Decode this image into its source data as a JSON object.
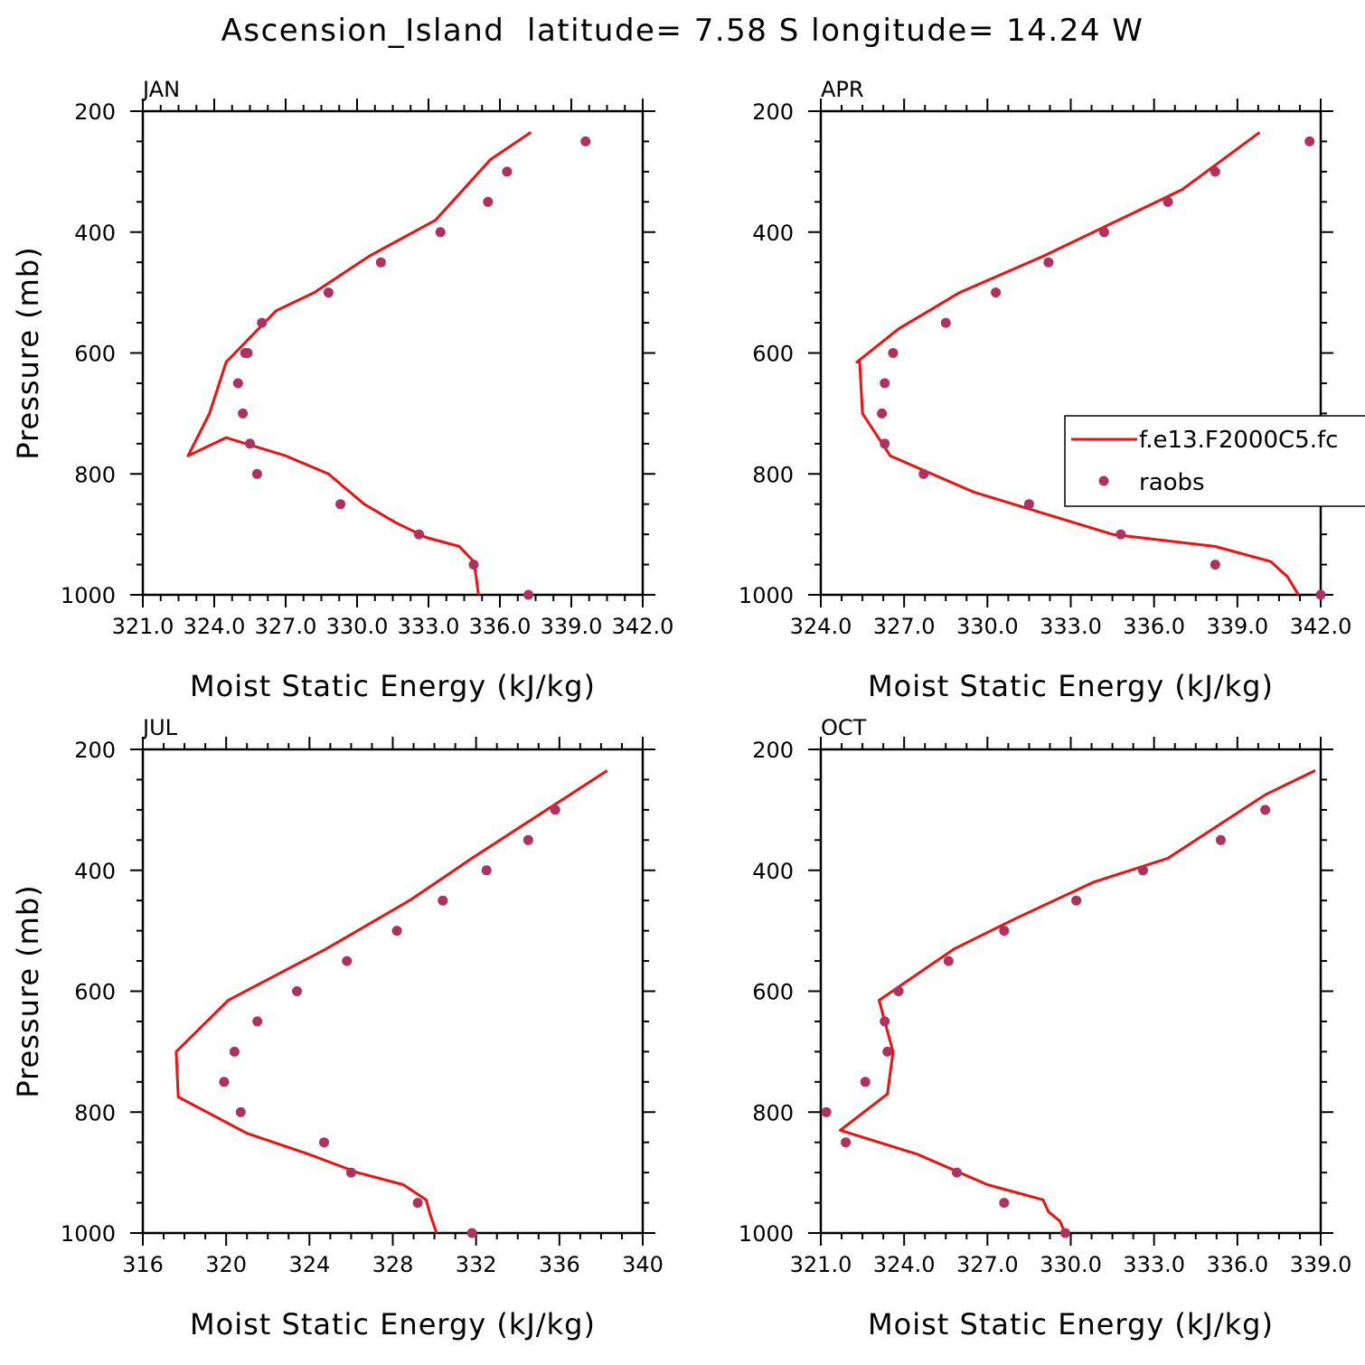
{
  "figure": {
    "title": "Ascension_Island  latitude= 7.58 S longitude= 14.24 W",
    "model_color": "#ee1111",
    "obs_color": "#b03060"
  },
  "legend": {
    "model_label": "f.e13.F2000C5.fc",
    "obs_label": "raobs"
  },
  "chart_data": [
    {
      "type": "line",
      "panel": "JAN",
      "xlabel": "Moist Static Energy (kJ/kg)",
      "ylabel": "Pressure (mb)",
      "xlim": [
        321.0,
        342.0
      ],
      "ylim": [
        1000,
        200
      ],
      "xticks": [
        321.0,
        324.0,
        327.0,
        330.0,
        333.0,
        336.0,
        339.0,
        342.0
      ],
      "xtick_labels": [
        "321.0",
        "324.0",
        "327.0",
        "330.0",
        "333.0",
        "336.0",
        "339.0",
        "342.0"
      ],
      "yticks": [
        200,
        400,
        600,
        800,
        1000
      ],
      "ytick_labels": [
        "200",
        "400",
        "600",
        "800",
        "1000"
      ],
      "series": [
        {
          "kind": "line",
          "x": [
            335.1,
            335.0,
            334.9,
            334.3,
            332.9,
            331.6,
            330.3,
            328.8,
            327.0,
            324.5,
            322.9,
            323.8,
            324.5,
            326.6,
            328.2,
            330.5,
            333.3,
            335.6,
            337.3
          ],
          "y": [
            1000,
            970,
            945,
            920,
            905,
            880,
            850,
            800,
            770,
            740,
            770,
            700,
            615,
            530,
            500,
            440,
            380,
            280,
            235
          ]
        },
        {
          "kind": "scatter",
          "x": [
            337.2,
            334.9,
            332.6,
            329.3,
            325.8,
            325.5,
            325.2,
            325.0,
            325.3,
            325.4,
            326.0,
            328.8,
            331.0,
            333.5,
            335.5,
            336.3,
            339.6
          ],
          "y": [
            1000,
            950,
            900,
            850,
            800,
            750,
            700,
            650,
            600,
            600,
            550,
            500,
            450,
            400,
            350,
            300,
            250
          ]
        }
      ]
    },
    {
      "type": "line",
      "panel": "APR",
      "xlabel": "Moist Static Energy (kJ/kg)",
      "ylabel": "",
      "xlim": [
        324.0,
        342.0
      ],
      "ylim": [
        1000,
        200
      ],
      "xticks": [
        324.0,
        327.0,
        330.0,
        333.0,
        336.0,
        339.0,
        342.0
      ],
      "xtick_labels": [
        "324.0",
        "327.0",
        "330.0",
        "333.0",
        "336.0",
        "339.0",
        "342.0"
      ],
      "yticks": [
        200,
        400,
        600,
        800,
        1000
      ],
      "ytick_labels": [
        "200",
        "400",
        "600",
        "800",
        "1000"
      ],
      "series": [
        {
          "kind": "line",
          "x": [
            341.2,
            340.8,
            340.2,
            338.2,
            334.5,
            329.5,
            327.5,
            326.5,
            325.5,
            325.4,
            325.3,
            326.8,
            329.0,
            332.0,
            337.0,
            339.8
          ],
          "y": [
            1000,
            970,
            945,
            920,
            900,
            830,
            790,
            770,
            700,
            615,
            615,
            560,
            500,
            440,
            330,
            235
          ]
        },
        {
          "kind": "scatter",
          "x": [
            342.0,
            338.2,
            334.8,
            331.5,
            327.7,
            326.3,
            326.2,
            326.3,
            326.6,
            328.5,
            330.3,
            332.2,
            334.2,
            336.5,
            338.2,
            341.6
          ],
          "y": [
            1000,
            950,
            900,
            850,
            800,
            750,
            700,
            650,
            600,
            550,
            500,
            450,
            400,
            350,
            300,
            250
          ]
        }
      ]
    },
    {
      "type": "line",
      "panel": "JUL",
      "xlabel": "Moist Static Energy (kJ/kg)",
      "ylabel": "Pressure (mb)",
      "xlim": [
        316,
        340
      ],
      "ylim": [
        1000,
        200
      ],
      "xticks": [
        316,
        320,
        324,
        328,
        332,
        336,
        340
      ],
      "xtick_labels": [
        "316",
        "320",
        "324",
        "328",
        "332",
        "336",
        "340"
      ],
      "yticks": [
        200,
        400,
        600,
        800,
        1000
      ],
      "ytick_labels": [
        "200",
        "400",
        "600",
        "800",
        "1000"
      ],
      "series": [
        {
          "kind": "line",
          "x": [
            330.1,
            329.8,
            329.6,
            328.5,
            326.3,
            324.0,
            321.0,
            317.7,
            317.6,
            320.1,
            324.8,
            328.8,
            331.8,
            336.5,
            338.3
          ],
          "y": [
            1000,
            970,
            945,
            920,
            900,
            870,
            835,
            775,
            700,
            615,
            530,
            450,
            380,
            275,
            235
          ]
        },
        {
          "kind": "scatter",
          "x": [
            331.8,
            329.2,
            326.0,
            324.7,
            320.7,
            319.9,
            320.4,
            321.5,
            323.4,
            325.8,
            328.2,
            330.4,
            332.5,
            334.5,
            335.8
          ],
          "y": [
            1000,
            950,
            900,
            850,
            800,
            750,
            700,
            650,
            600,
            550,
            500,
            450,
            400,
            350,
            300
          ]
        }
      ]
    },
    {
      "type": "line",
      "panel": "OCT",
      "xlabel": "Moist Static Energy (kJ/kg)",
      "ylabel": "",
      "xlim": [
        321.0,
        339.0
      ],
      "ylim": [
        1000,
        200
      ],
      "xticks": [
        321.0,
        324.0,
        327.0,
        330.0,
        333.0,
        336.0,
        339.0
      ],
      "xtick_labels": [
        "321.0",
        "324.0",
        "327.0",
        "330.0",
        "333.0",
        "336.0",
        "339.0"
      ],
      "yticks": [
        200,
        400,
        600,
        800,
        1000
      ],
      "ytick_labels": [
        "200",
        "400",
        "600",
        "800",
        "1000"
      ],
      "series": [
        {
          "kind": "line",
          "x": [
            329.8,
            329.6,
            329.2,
            329.0,
            327.0,
            324.5,
            321.7,
            323.4,
            323.6,
            323.3,
            323.1,
            325.8,
            328.0,
            330.8,
            333.5,
            337.0,
            338.8
          ],
          "y": [
            1000,
            980,
            965,
            945,
            920,
            870,
            830,
            770,
            700,
            650,
            615,
            530,
            480,
            420,
            380,
            275,
            235
          ]
        },
        {
          "kind": "scatter",
          "x": [
            329.8,
            327.6,
            325.9,
            321.9,
            321.2,
            322.6,
            323.4,
            323.3,
            323.8,
            325.6,
            327.6,
            330.2,
            332.6,
            335.4,
            337.0
          ],
          "y": [
            1000,
            950,
            900,
            850,
            800,
            750,
            700,
            650,
            600,
            550,
            500,
            450,
            400,
            350,
            300
          ]
        }
      ]
    }
  ]
}
